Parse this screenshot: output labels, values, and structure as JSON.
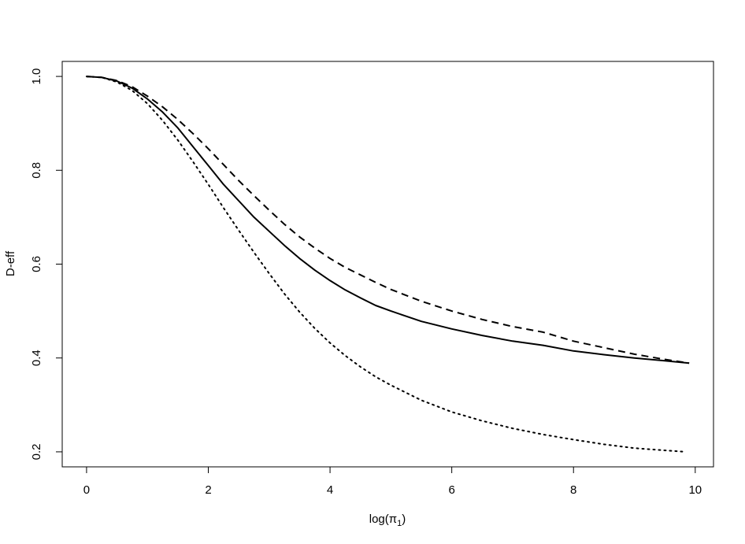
{
  "chart_data": {
    "type": "line",
    "xlabel": "log(π",
    "xlabel_sub": "1",
    "xlabel_close": ")",
    "ylabel": "D-eff",
    "xlim": [
      -0.4,
      10.3
    ],
    "ylim": [
      0.168,
      1.032
    ],
    "x_ticks": [
      0,
      2,
      4,
      6,
      8,
      10
    ],
    "x_tick_labels": [
      "0",
      "2",
      "4",
      "6",
      "8",
      "10"
    ],
    "y_ticks": [
      0.2,
      0.4,
      0.6,
      0.8,
      1.0
    ],
    "y_tick_labels": [
      "0.2",
      "0.4",
      "0.6",
      "0.8",
      "1.0"
    ],
    "grid": false,
    "legend": "none",
    "series": [
      {
        "style": "solid",
        "x": [
          0.0,
          0.25,
          0.5,
          0.75,
          1.0,
          1.25,
          1.5,
          1.75,
          2.0,
          2.25,
          2.5,
          2.75,
          3.0,
          3.25,
          3.5,
          3.75,
          4.0,
          4.25,
          4.5,
          4.75,
          5.0,
          5.5,
          6.0,
          6.5,
          7.0,
          7.5,
          8.0,
          8.5,
          9.0,
          9.5,
          9.9
        ],
        "y": [
          1.0,
          0.998,
          0.99,
          0.975,
          0.952,
          0.924,
          0.89,
          0.85,
          0.81,
          0.77,
          0.735,
          0.7,
          0.67,
          0.64,
          0.612,
          0.587,
          0.565,
          0.545,
          0.528,
          0.512,
          0.5,
          0.478,
          0.462,
          0.448,
          0.436,
          0.427,
          0.415,
          0.407,
          0.4,
          0.394,
          0.389
        ]
      },
      {
        "style": "dashed",
        "x": [
          0.0,
          0.25,
          0.5,
          0.75,
          1.0,
          1.25,
          1.5,
          1.75,
          2.0,
          2.25,
          2.5,
          2.75,
          3.0,
          3.25,
          3.5,
          3.75,
          4.0,
          4.25,
          4.5,
          4.75,
          5.0,
          5.5,
          6.0,
          6.5,
          7.0,
          7.5,
          8.0,
          8.5,
          9.0,
          9.5,
          9.9
        ],
        "y": [
          1.0,
          0.998,
          0.991,
          0.978,
          0.958,
          0.935,
          0.908,
          0.878,
          0.846,
          0.812,
          0.778,
          0.746,
          0.715,
          0.685,
          0.658,
          0.634,
          0.612,
          0.593,
          0.577,
          0.561,
          0.546,
          0.521,
          0.5,
          0.482,
          0.467,
          0.455,
          0.436,
          0.422,
          0.408,
          0.397,
          0.389
        ]
      },
      {
        "style": "dotted",
        "x": [
          0.0,
          0.25,
          0.5,
          0.75,
          1.0,
          1.25,
          1.5,
          1.75,
          2.0,
          2.25,
          2.5,
          2.75,
          3.0,
          3.25,
          3.5,
          3.75,
          4.0,
          4.25,
          4.5,
          4.75,
          5.0,
          5.5,
          6.0,
          6.5,
          7.0,
          7.5,
          8.0,
          8.5,
          9.0,
          9.5,
          9.85
        ],
        "y": [
          1.0,
          0.998,
          0.988,
          0.97,
          0.942,
          0.906,
          0.864,
          0.818,
          0.77,
          0.72,
          0.672,
          0.625,
          0.58,
          0.537,
          0.498,
          0.463,
          0.432,
          0.405,
          0.381,
          0.36,
          0.342,
          0.31,
          0.285,
          0.266,
          0.25,
          0.237,
          0.226,
          0.216,
          0.208,
          0.203,
          0.2
        ]
      }
    ]
  }
}
